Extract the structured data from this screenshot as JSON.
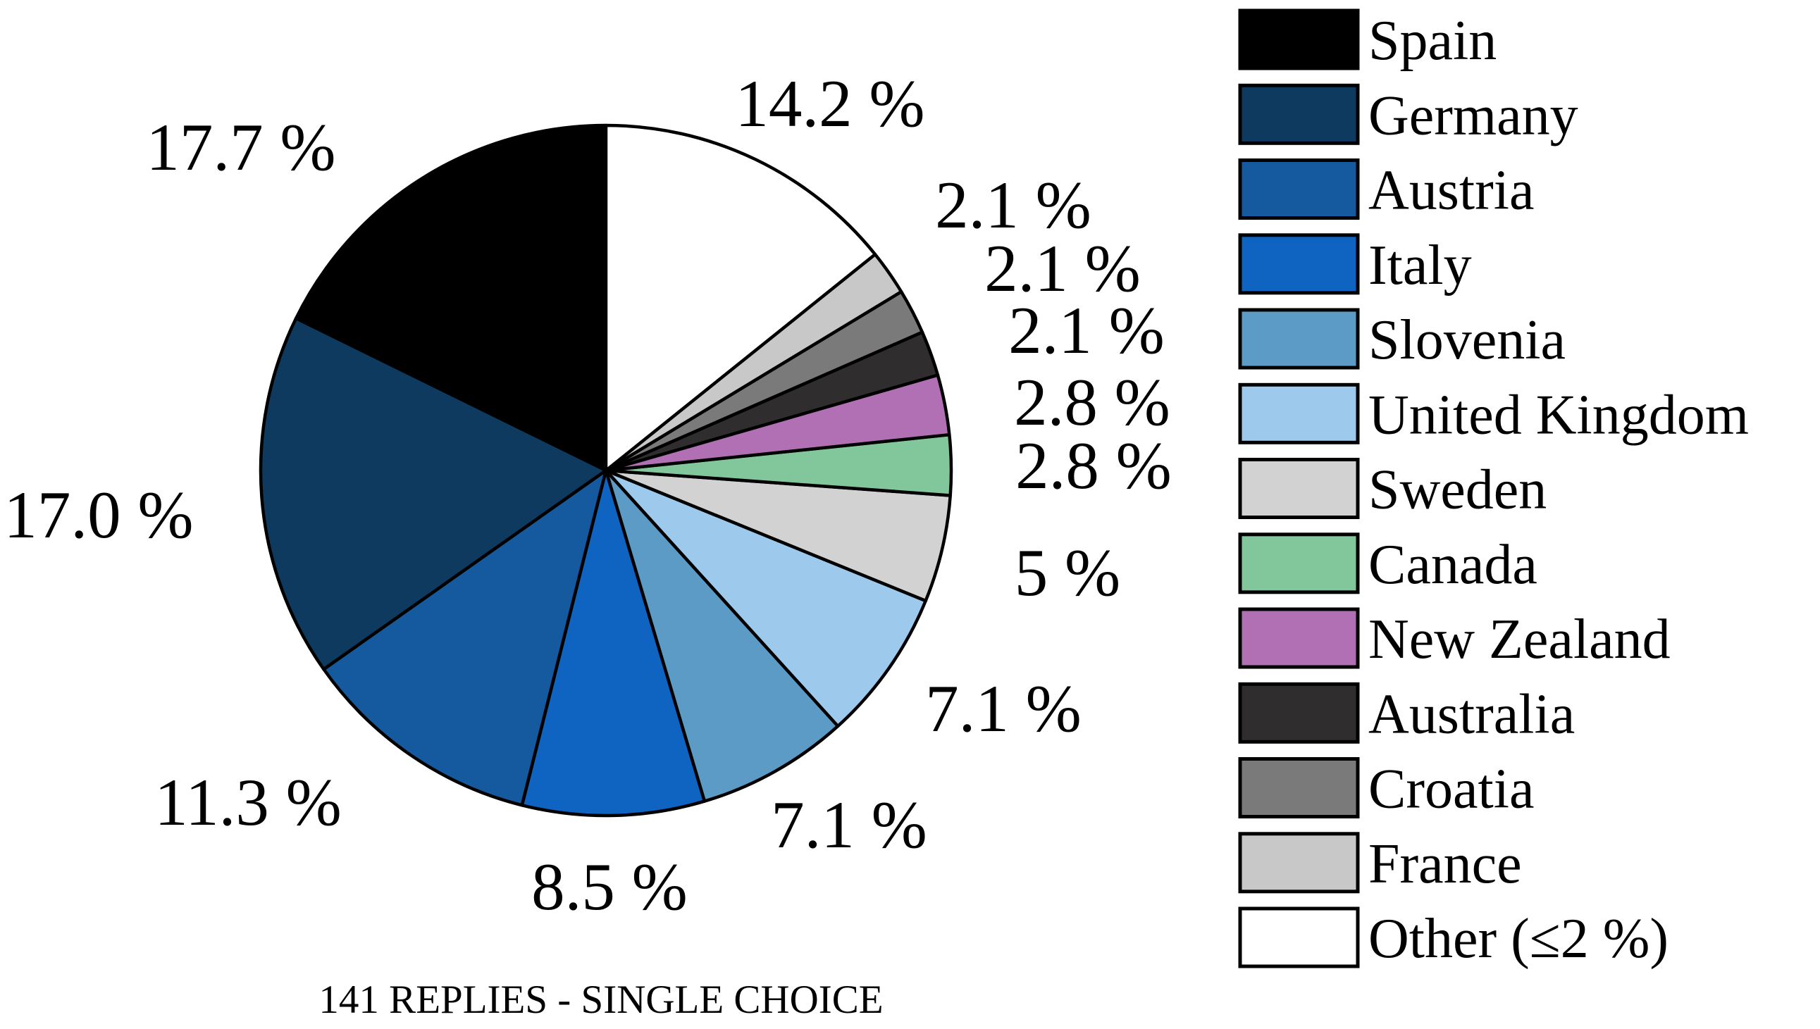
{
  "caption": "141 REPLIES - SINGLE CHOICE",
  "chart_data": {
    "type": "pie",
    "title": "",
    "start_angle_deg": 90,
    "direction": "counterclockwise",
    "legend_position": "right",
    "slices": [
      {
        "label": "Spain",
        "percent_label": "17.7 %",
        "value": 17.7,
        "color": "#000000"
      },
      {
        "label": "Germany",
        "percent_label": "17.0 %",
        "value": 17.0,
        "color": "#0E3A5F"
      },
      {
        "label": "Austria",
        "percent_label": "11.3 %",
        "value": 11.3,
        "color": "#155A9E"
      },
      {
        "label": "Italy",
        "percent_label": "8.5 %",
        "value": 8.5,
        "color": "#0E64C0"
      },
      {
        "label": "Slovenia",
        "percent_label": "7.1 %",
        "value": 7.1,
        "color": "#5B9BC6"
      },
      {
        "label": "United Kingdom",
        "percent_label": "7.1 %",
        "value": 7.1,
        "color": "#9DC9EC"
      },
      {
        "label": "Sweden",
        "percent_label": "5 %",
        "value": 5.0,
        "color": "#D2D2D2"
      },
      {
        "label": "Canada",
        "percent_label": "2.8 %",
        "value": 2.8,
        "color": "#82C69C"
      },
      {
        "label": "New Zealand",
        "percent_label": "2.8 %",
        "value": 2.8,
        "color": "#B16FB4"
      },
      {
        "label": "Australia",
        "percent_label": "2.1 %",
        "value": 2.1,
        "color": "#2F2D2E"
      },
      {
        "label": "Croatia",
        "percent_label": "2.1 %",
        "value": 2.1,
        "color": "#7A7A7A"
      },
      {
        "label": "France",
        "percent_label": "2.1 %",
        "value": 2.1,
        "color": "#C8C8C8"
      },
      {
        "label": "Other (≤2 %)",
        "percent_label": "14.2 %",
        "value": 14.2,
        "color": "#FFFFFF"
      }
    ]
  }
}
